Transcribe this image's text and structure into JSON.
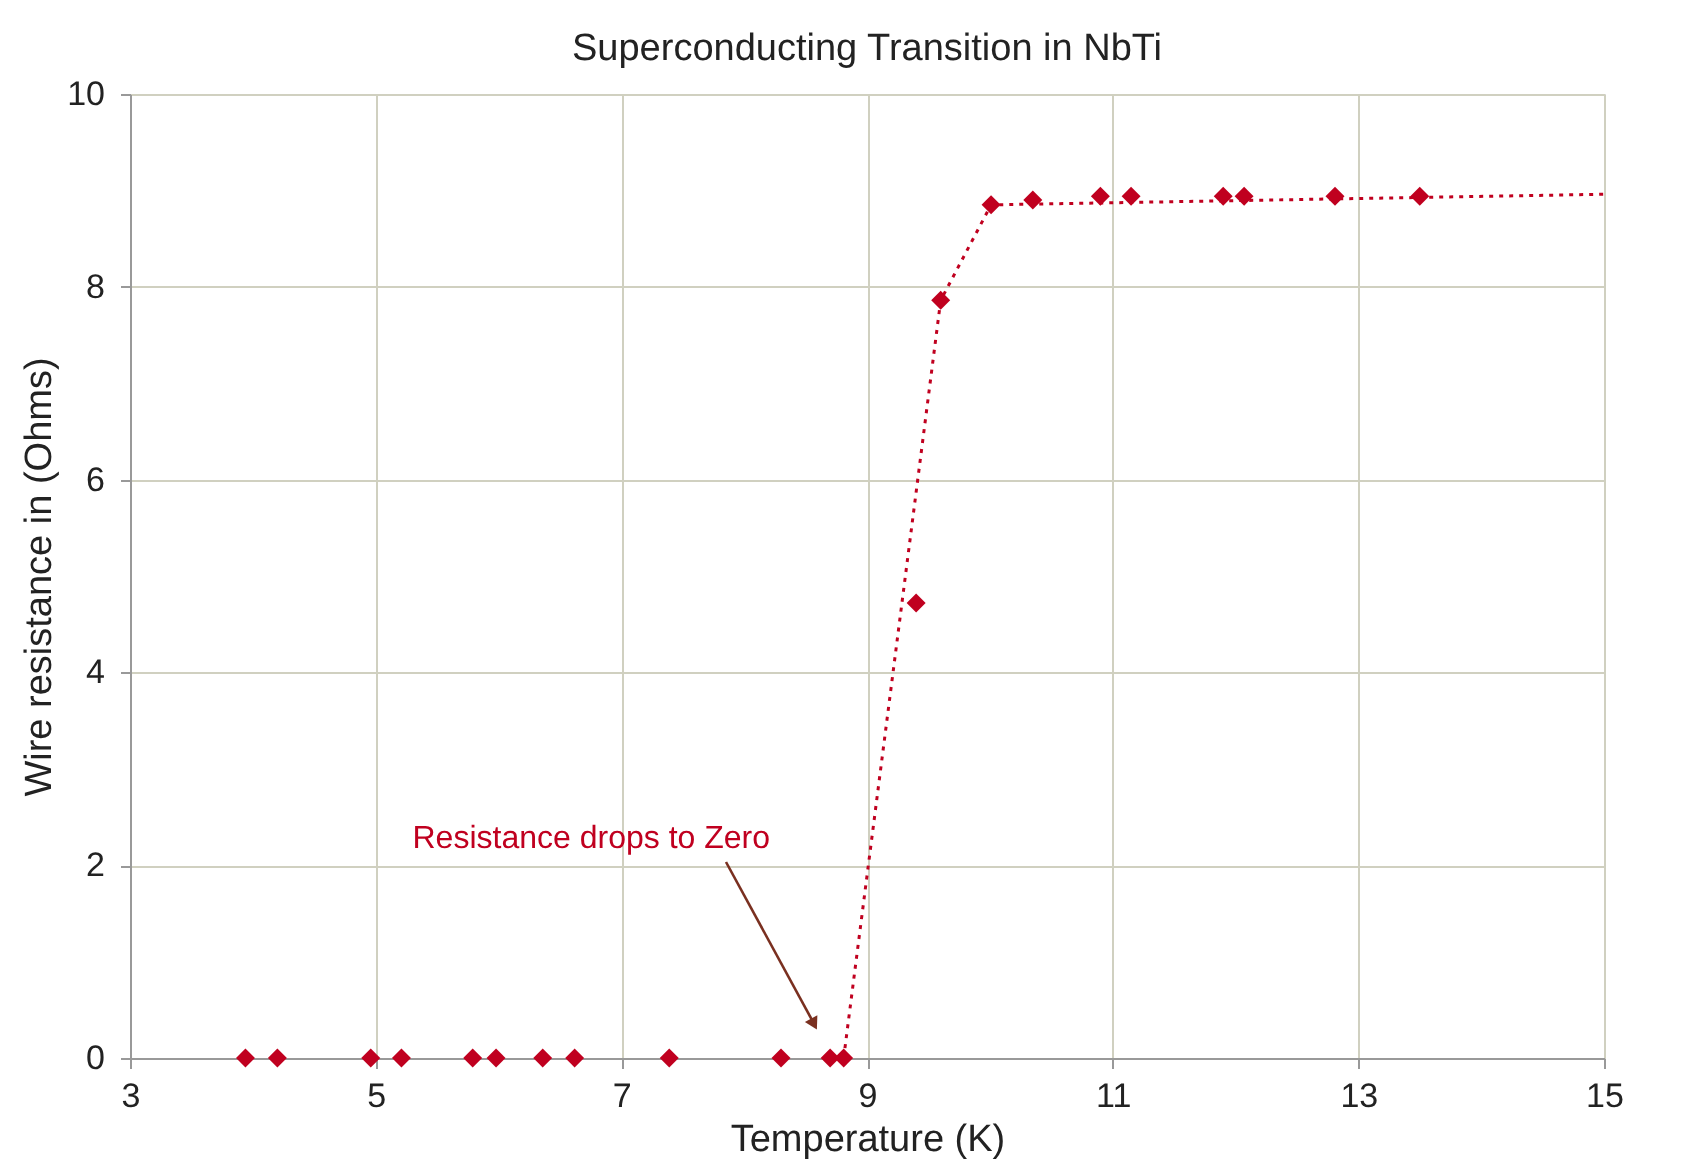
{
  "chart_data": {
    "type": "scatter",
    "title": "Superconducting Transition in NbTi",
    "xlabel": "Temperature  (K)",
    "ylabel": "Wire resistance in (Ohms)",
    "marker": "diamond",
    "grid": true,
    "legend": false,
    "xlim": [
      3,
      15
    ],
    "xticks": [
      3,
      5,
      7,
      9,
      11,
      13,
      15
    ],
    "ylim": [
      0,
      10
    ],
    "yticks": [
      0,
      2,
      4,
      6,
      8,
      10
    ],
    "series": [
      {
        "type": "scatter",
        "color": "#c0001f",
        "x": [
          3.94,
          4.2,
          4.96,
          5.21,
          5.79,
          5.98,
          6.36,
          6.62,
          7.39,
          8.3,
          8.7,
          8.81,
          9.4,
          9.6,
          10.01,
          10.35,
          10.9,
          11.15,
          11.9,
          12.07,
          12.81,
          13.5
        ],
        "values": [
          0,
          0,
          0,
          0,
          0,
          0,
          0,
          0,
          0,
          0,
          0,
          0,
          4.72,
          7.86,
          8.85,
          8.9,
          8.94,
          8.94,
          8.94,
          8.94,
          8.94,
          8.94
        ]
      },
      {
        "type": "line",
        "marker": "none",
        "line_style": "dotted",
        "color": "#c0001f",
        "x": [
          8.81,
          9.6,
          10.01,
          15
        ],
        "values": [
          0,
          7.86,
          8.85,
          8.96
        ]
      }
    ],
    "annotations": [
      "Resistance drops to Zero"
    ]
  }
}
